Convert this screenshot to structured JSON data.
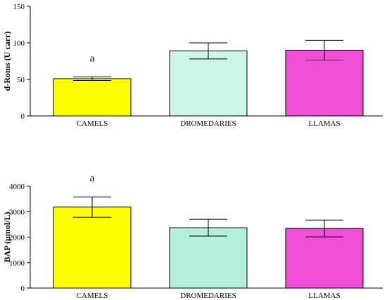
{
  "chart_data": [
    {
      "type": "bar",
      "title": "",
      "xlabel": "",
      "ylabel": "d-Roms (U carr)",
      "ylim": [
        0,
        150
      ],
      "yticks": [
        0,
        50,
        100,
        150
      ],
      "categories": [
        "CAMELS",
        "DROMEDARIES",
        "LLAMAS"
      ],
      "values": [
        51,
        89,
        90
      ],
      "error": [
        2.5,
        11,
        13.5
      ],
      "colors": [
        "#ffff00",
        "#ccf5e6",
        "#f24fd8"
      ],
      "annotations": [
        {
          "category": "CAMELS",
          "text": "a"
        }
      ]
    },
    {
      "type": "bar",
      "title": "",
      "xlabel": "",
      "ylabel": "BAP (µmol/L)",
      "ylim": [
        0,
        4000
      ],
      "yticks": [
        0,
        1000,
        2000,
        3000,
        4000
      ],
      "categories": [
        "CAMELS",
        "DROMEDARIES",
        "LLAMAS"
      ],
      "values": [
        3180,
        2370,
        2340
      ],
      "error": [
        400,
        330,
        330
      ],
      "colors": [
        "#ffff00",
        "#b3f2d9",
        "#f24fd8"
      ],
      "annotations": [
        {
          "category": "CAMELS",
          "text": "a"
        }
      ]
    }
  ]
}
